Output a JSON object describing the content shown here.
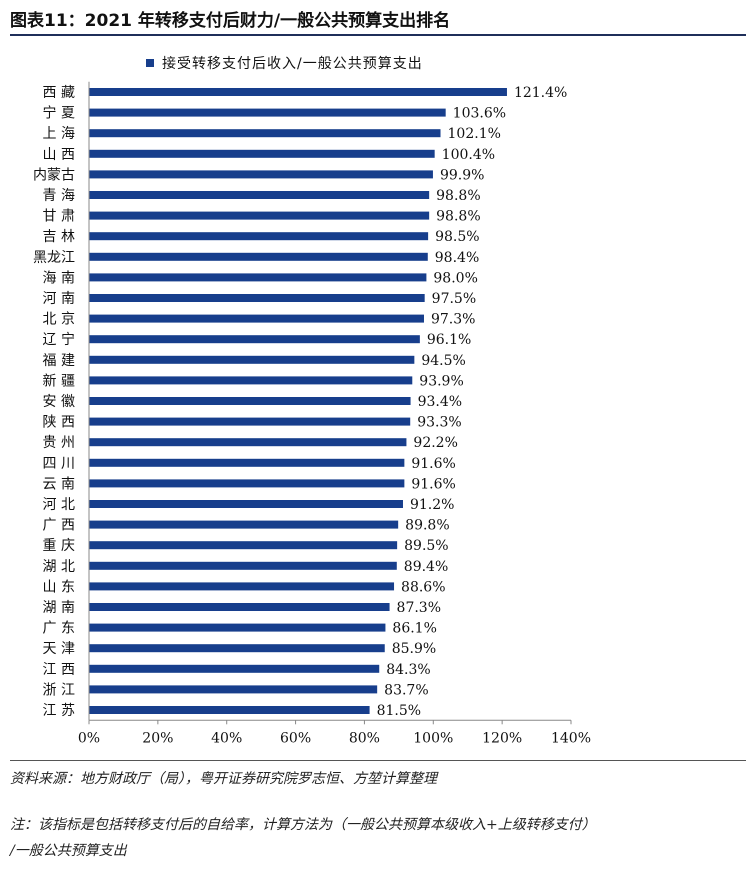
{
  "header": {
    "title": "图表11：2021 年转移支付后财力/一般公共预算支出排名"
  },
  "footer": {
    "source": "资料来源：地方财政厅（局），粤开证券研究院罗志恒、方堃计算整理",
    "note_line1": "注：该指标是包括转移支付后的自给率，计算方法为（一般公共预算本级收入+上级转移支付）",
    "note_line2": "/一般公共预算支出"
  },
  "colors": {
    "bar": "#173e8c",
    "title_rule": "#1f2f5a"
  },
  "chart_data": {
    "type": "bar",
    "orientation": "horizontal",
    "legend_position": "top",
    "grid": false,
    "xlim": [
      0,
      140
    ],
    "x_ticks": [
      "0%",
      "20%",
      "40%",
      "60%",
      "80%",
      "100%",
      "120%",
      "140%"
    ],
    "x_tick_values": [
      0,
      20,
      40,
      60,
      80,
      100,
      120,
      140
    ],
    "series": [
      {
        "name": "接受转移支付后收入/一般公共预算支出",
        "values": [
          121.4,
          103.6,
          102.1,
          100.4,
          99.9,
          98.8,
          98.8,
          98.5,
          98.4,
          98.0,
          97.5,
          97.3,
          96.1,
          94.5,
          93.9,
          93.4,
          93.3,
          92.2,
          91.6,
          91.6,
          91.2,
          89.8,
          89.5,
          89.4,
          88.6,
          87.3,
          86.1,
          85.9,
          84.3,
          83.7,
          81.5
        ],
        "labels": [
          "121.4%",
          "103.6%",
          "102.1%",
          "100.4%",
          "99.9%",
          "98.8%",
          "98.8%",
          "98.5%",
          "98.4%",
          "98.0%",
          "97.5%",
          "97.3%",
          "96.1%",
          "94.5%",
          "93.9%",
          "93.4%",
          "93.3%",
          "92.2%",
          "91.6%",
          "91.6%",
          "91.2%",
          "89.8%",
          "89.5%",
          "89.4%",
          "88.6%",
          "87.3%",
          "86.1%",
          "85.9%",
          "84.3%",
          "83.7%",
          "81.5%"
        ]
      }
    ],
    "categories": [
      "西 藏",
      "宁 夏",
      "上 海",
      "山 西",
      "内蒙古",
      "青 海",
      "甘 肃",
      "吉 林",
      "黑龙江",
      "海 南",
      "河 南",
      "北 京",
      "辽 宁",
      "福 建",
      "新 疆",
      "安 徽",
      "陕 西",
      "贵 州",
      "四 川",
      "云 南",
      "河 北",
      "广 西",
      "重 庆",
      "湖 北",
      "山 东",
      "湖 南",
      "广 东",
      "天 津",
      "江 西",
      "浙 江",
      "江 苏"
    ]
  }
}
